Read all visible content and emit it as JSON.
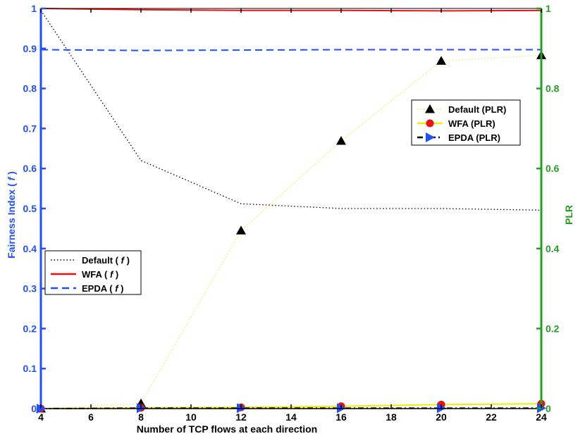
{
  "chart_data": {
    "type": "line",
    "xlabel": "Number of TCP flows at each direction",
    "ylabel_left": "Fairness Index ( f )",
    "ylabel_left_parts": [
      "Fairness Index ( ",
      "f",
      " )"
    ],
    "ylabel_right": "PLR",
    "x": [
      4,
      8,
      12,
      16,
      20,
      24
    ],
    "xlim": [
      4,
      24
    ],
    "xticks": [
      "4",
      "6",
      "8",
      "10",
      "12",
      "14",
      "16",
      "18",
      "20",
      "22",
      "24"
    ],
    "ylim_left": [
      0,
      1
    ],
    "yticks_left": [
      "0",
      "0.1",
      "0.2",
      "0.3",
      "0.4",
      "0.5",
      "0.6",
      "0.7",
      "0.8",
      "0.9",
      "1"
    ],
    "ylim_right": [
      0,
      1
    ],
    "yticks_right": [
      "0",
      "0.2",
      "0.4",
      "0.6",
      "0.8",
      "1"
    ],
    "grid": false,
    "left_axis_color": "#1f4fff",
    "right_axis_color": "#22a022",
    "series": [
      {
        "name": "Default ( f )",
        "name_parts": [
          "Default ( ",
          "f",
          " )"
        ],
        "axis": "left",
        "style": "dotted",
        "color": "#000000",
        "values": [
          0.995,
          0.62,
          0.512,
          0.5,
          0.5,
          0.496
        ]
      },
      {
        "name": "WFA ( f )",
        "name_parts": [
          "WFA ( ",
          "f",
          " )"
        ],
        "axis": "left",
        "style": "solid",
        "color": "#ee1111",
        "values": [
          1.0,
          0.997,
          0.995,
          0.995,
          0.994,
          0.995
        ]
      },
      {
        "name": "EPDA ( f )",
        "name_parts": [
          "EPDA ( ",
          "f",
          " )"
        ],
        "axis": "left",
        "style": "dashed",
        "color": "#1f4fff",
        "values": [
          0.897,
          0.895,
          0.896,
          0.897,
          0.897,
          0.897
        ]
      },
      {
        "name": "Default (PLR)",
        "axis": "right",
        "style": "dotted",
        "color": "#eeee44",
        "marker": "triangle",
        "marker_color": "#000000",
        "values": [
          0.0,
          0.013,
          0.445,
          0.669,
          0.869,
          0.883
        ]
      },
      {
        "name": "WFA (PLR)",
        "axis": "right",
        "style": "solid",
        "color": "#eeee00",
        "marker": "circle",
        "marker_color": "#ee1111",
        "values": [
          0.0,
          0.002,
          0.003,
          0.006,
          0.01,
          0.012
        ]
      },
      {
        "name": "EPDA (PLR)",
        "axis": "right",
        "style": "dash-dot",
        "color": "#000000",
        "marker": "triangle-right",
        "marker_color": "#1f4fff",
        "values": [
          0.0,
          0.001,
          0.001,
          0.001,
          0.001,
          0.001
        ]
      }
    ],
    "legends": [
      {
        "placement": "left-middle",
        "series": [
          0,
          1,
          2
        ]
      },
      {
        "placement": "right-upper",
        "series": [
          3,
          4,
          5
        ]
      }
    ]
  }
}
